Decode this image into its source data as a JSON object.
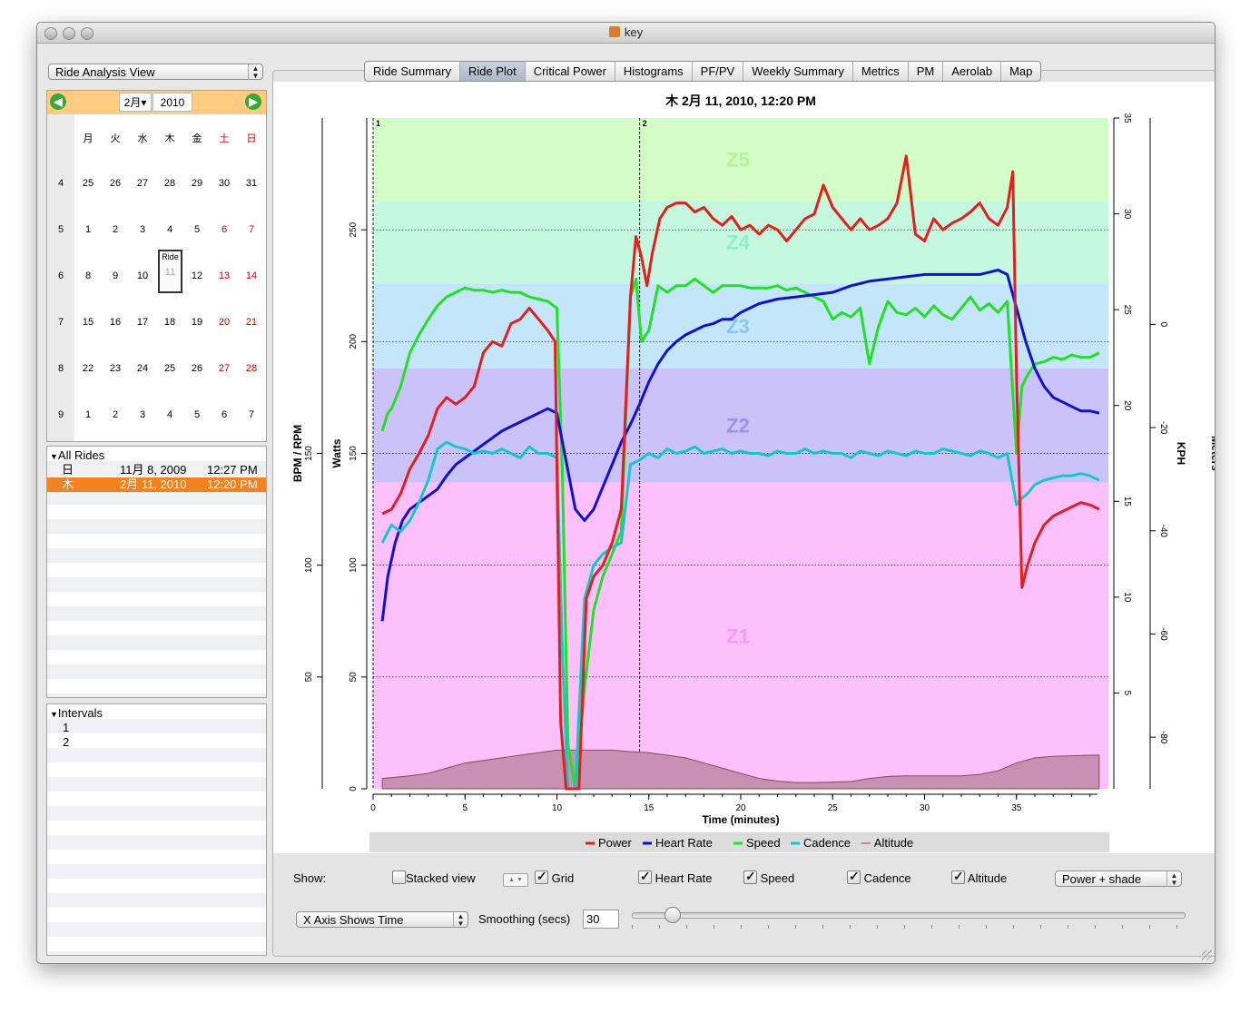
{
  "window": {
    "title": "key"
  },
  "sidebar": {
    "view_selector": "Ride Analysis View",
    "calendar": {
      "month": "2月",
      "year": "2010",
      "weekdays": [
        "月",
        "火",
        "水",
        "木",
        "金",
        "土",
        "日"
      ],
      "weeks": [
        {
          "num": "4",
          "days": [
            "25",
            "26",
            "27",
            "28",
            "29",
            "30",
            "31"
          ]
        },
        {
          "num": "5",
          "days": [
            "1",
            "2",
            "3",
            "4",
            "5",
            "6",
            "7"
          ]
        },
        {
          "num": "6",
          "days": [
            "8",
            "9",
            "10",
            "11",
            "12",
            "13",
            "14"
          ]
        },
        {
          "num": "7",
          "days": [
            "15",
            "16",
            "17",
            "18",
            "19",
            "20",
            "21"
          ]
        },
        {
          "num": "8",
          "days": [
            "22",
            "23",
            "24",
            "25",
            "26",
            "27",
            "28"
          ]
        },
        {
          "num": "9",
          "days": [
            "1",
            "2",
            "3",
            "4",
            "5",
            "6",
            "7"
          ]
        }
      ],
      "ride_marker": "Ride",
      "weekend_color": "#cc0000",
      "header_color": "#ffcc80"
    },
    "rides": {
      "header": "All Rides",
      "items": [
        {
          "day": "日",
          "date": "11月 8, 2009",
          "time": "12:27 PM",
          "selected": false
        },
        {
          "day": "木",
          "date": "2月 11, 2010",
          "time": "12:20 PM",
          "selected": true
        }
      ],
      "selected_color": "#f4831f"
    },
    "intervals": {
      "header": "Intervals",
      "items": [
        "1",
        "2"
      ]
    }
  },
  "tabs": [
    {
      "label": "Ride Summary"
    },
    {
      "label": "Ride Plot",
      "selected": true
    },
    {
      "label": "Critical Power"
    },
    {
      "label": "Histograms"
    },
    {
      "label": "PF/PV"
    },
    {
      "label": "Weekly Summary"
    },
    {
      "label": "Metrics"
    },
    {
      "label": "PM"
    },
    {
      "label": "Aerolab"
    },
    {
      "label": "Map"
    }
  ],
  "controls": {
    "show_label": "Show:",
    "stacked_view": {
      "label": "Stacked view",
      "checked": false
    },
    "grid": {
      "label": "Grid",
      "checked": true
    },
    "heart_rate": {
      "label": "Heart Rate",
      "checked": true
    },
    "speed": {
      "label": "Speed",
      "checked": true
    },
    "cadence": {
      "label": "Cadence",
      "checked": true
    },
    "altitude": {
      "label": "Altitude",
      "checked": true
    },
    "shade_select": "Power + shade",
    "x_axis_select": "X Axis Shows Time",
    "smoothing_label": "Smoothing (secs)",
    "smoothing_value": "30",
    "smoothing_slider_fraction": 0.06
  },
  "chart_data": {
    "type": "line",
    "title": "木 2月 11, 2010, 12:20 PM",
    "xlabel": "Time (minutes)",
    "xlim": [
      0,
      40
    ],
    "xticks": [
      "0",
      "5",
      "10",
      "15",
      "20",
      "25",
      "30",
      "35"
    ],
    "y_axes": {
      "watts": {
        "label": "Watts",
        "range": [
          0,
          300
        ],
        "ticks": [
          "0",
          "50",
          "100",
          "150",
          "200",
          "250"
        ]
      },
      "bpm_rpm": {
        "label": "BPM / RPM",
        "range": [
          0,
          300
        ],
        "ticks": [
          "50",
          "100",
          "150"
        ]
      },
      "kph": {
        "label": "KPH",
        "range": [
          0,
          35
        ],
        "ticks": [
          "5",
          "10",
          "15",
          "20",
          "25",
          "30",
          "35"
        ]
      },
      "meters": {
        "label": "Meters",
        "range": [
          -90,
          40
        ],
        "ticks": [
          "-80",
          "-60",
          "-40",
          "-20",
          "0"
        ]
      }
    },
    "zones": [
      {
        "name": "Z1",
        "from": 0,
        "to": 137,
        "color": "#fcc0fc"
      },
      {
        "name": "Z2",
        "from": 137,
        "to": 188,
        "color": "#cbc2fa"
      },
      {
        "name": "Z3",
        "from": 188,
        "to": 226,
        "color": "#c4e6fa"
      },
      {
        "name": "Z4",
        "from": 226,
        "to": 263,
        "color": "#c4f9df"
      },
      {
        "name": "Z5",
        "from": 263,
        "to": 300,
        "color": "#d4fcc6"
      }
    ],
    "intervals": [
      {
        "name": "1",
        "x": 0
      },
      {
        "name": "2",
        "x": 14.5
      }
    ],
    "grid": true,
    "legend_position": "bottom",
    "series": [
      {
        "name": "Power",
        "color": "#e21f1f",
        "axis": "watts",
        "x": [
          0.5,
          1,
          1.5,
          2,
          2.5,
          3,
          3.5,
          4,
          4.5,
          5,
          5.5,
          6,
          6.5,
          7,
          7.5,
          8,
          8.5,
          9,
          9.5,
          9.9,
          10.2,
          10.5,
          10.8,
          11.2,
          11.6,
          12,
          12.5,
          13,
          13.5,
          14,
          14.3,
          14.6,
          14.9,
          15.2,
          15.6,
          16,
          16.5,
          17,
          17.5,
          18,
          18.5,
          19,
          19.5,
          20,
          20.5,
          21,
          21.5,
          22,
          22.5,
          23,
          23.5,
          24,
          24.5,
          25,
          25.5,
          26,
          26.5,
          27,
          27.5,
          28,
          28.5,
          29,
          29.5,
          30,
          30.5,
          31,
          31.5,
          32,
          32.5,
          33,
          33.5,
          34,
          34.5,
          34.8,
          35,
          35.3,
          35.6,
          36,
          36.5,
          37,
          37.5,
          38,
          38.5,
          39,
          39.5
        ],
        "y": [
          123,
          125,
          132,
          143,
          150,
          158,
          170,
          175,
          172,
          175,
          180,
          195,
          200,
          198,
          208,
          210,
          215,
          210,
          205,
          200,
          30,
          0,
          0,
          0,
          85,
          95,
          100,
          110,
          125,
          220,
          247,
          238,
          225,
          240,
          255,
          260,
          262,
          262,
          258,
          260,
          255,
          252,
          256,
          250,
          252,
          248,
          252,
          250,
          245,
          250,
          255,
          257,
          270,
          260,
          255,
          250,
          255,
          250,
          252,
          255,
          262,
          283,
          248,
          245,
          255,
          250,
          253,
          255,
          258,
          262,
          255,
          252,
          260,
          276,
          185,
          90,
          100,
          110,
          118,
          122,
          124,
          126,
          128,
          127,
          125
        ]
      },
      {
        "name": "Heart Rate",
        "color": "#1010d4",
        "axis": "bpm_rpm",
        "x": [
          0.5,
          0.8,
          1.2,
          1.6,
          2,
          2.5,
          3,
          3.5,
          4,
          4.5,
          5,
          5.5,
          6,
          6.5,
          7,
          7.5,
          8,
          8.5,
          9,
          9.5,
          10,
          10.3,
          10.7,
          11,
          11.5,
          12,
          12.5,
          13,
          13.5,
          14,
          14.5,
          15,
          15.5,
          16,
          16.5,
          17,
          17.5,
          18,
          18.5,
          19,
          19.5,
          20,
          20.5,
          21,
          22,
          23,
          24,
          25,
          26,
          27,
          28,
          29,
          30,
          31,
          32,
          33,
          34,
          34.5,
          35,
          35.5,
          36,
          36.5,
          37,
          37.5,
          38,
          38.5,
          39,
          39.5
        ],
        "y": [
          75,
          95,
          110,
          120,
          125,
          128,
          131,
          134,
          140,
          145,
          148,
          151,
          154,
          157,
          160,
          162,
          164,
          166,
          168,
          170,
          168,
          155,
          138,
          125,
          120,
          125,
          135,
          145,
          155,
          163,
          172,
          182,
          190,
          196,
          200,
          203,
          205,
          207,
          208,
          210,
          210,
          213,
          215,
          217,
          219,
          220,
          221,
          222,
          225,
          227,
          228,
          229,
          230,
          230,
          230,
          230,
          232,
          230,
          215,
          200,
          188,
          180,
          175,
          173,
          171,
          169,
          169,
          168
        ]
      },
      {
        "name": "Speed",
        "color": "#22e022",
        "axis": "bpm_rpm",
        "x": [
          0.5,
          0.8,
          1,
          1.5,
          2,
          2.5,
          3,
          3.5,
          4,
          4.5,
          5,
          5.5,
          6,
          6.5,
          7,
          7.5,
          8,
          8.5,
          9,
          9.5,
          10,
          10.3,
          10.6,
          11,
          11.5,
          12,
          12.5,
          13,
          13.5,
          14,
          14.3,
          14.6,
          15,
          15.5,
          16,
          16.5,
          17,
          17.5,
          18,
          18.5,
          19,
          19.5,
          20,
          20.5,
          21,
          21.5,
          22,
          22.5,
          23,
          23.5,
          24,
          24.5,
          25,
          25.5,
          26,
          26.5,
          27,
          27.5,
          28,
          28.5,
          29,
          29.5,
          30,
          30.5,
          31,
          31.5,
          32,
          32.5,
          33,
          33.5,
          34,
          34.5,
          35,
          35.3,
          35.6,
          36,
          36.5,
          37,
          37.5,
          38,
          38.5,
          39,
          39.5
        ],
        "y": [
          160,
          168,
          170,
          180,
          195,
          203,
          210,
          216,
          220,
          222,
          224,
          223,
          223,
          222,
          223,
          222,
          222,
          220,
          219,
          218,
          215,
          140,
          20,
          0,
          45,
          80,
          95,
          105,
          115,
          220,
          228,
          200,
          205,
          225,
          222,
          225,
          225,
          228,
          225,
          222,
          225,
          225,
          225,
          224,
          224,
          224,
          225,
          223,
          224,
          222,
          220,
          218,
          210,
          213,
          211,
          215,
          190,
          207,
          218,
          213,
          212,
          215,
          211,
          216,
          212,
          210,
          215,
          220,
          214,
          217,
          213,
          218,
          150,
          180,
          185,
          190,
          191,
          193,
          192,
          194,
          193,
          193,
          195
        ]
      },
      {
        "name": "Cadence",
        "color": "#12c8c8",
        "axis": "bpm_rpm",
        "x": [
          0.5,
          1,
          1.5,
          2,
          2.5,
          3,
          3.5,
          4,
          4.5,
          5,
          5.5,
          6,
          6.5,
          7,
          7.5,
          8,
          8.5,
          9,
          9.5,
          10,
          10.3,
          10.6,
          11,
          11.5,
          12,
          12.5,
          13,
          13.5,
          14,
          14.5,
          15,
          15.5,
          16,
          16.5,
          17,
          17.5,
          18,
          18.5,
          19,
          19.5,
          20,
          20.5,
          21,
          21.5,
          22,
          22.5,
          23,
          23.5,
          24,
          24.5,
          25,
          25.5,
          26,
          26.5,
          27,
          27.5,
          28,
          28.5,
          29,
          29.5,
          30,
          30.5,
          31,
          31.5,
          32,
          32.5,
          33,
          33.5,
          34,
          34.5,
          35,
          35.3,
          35.6,
          36,
          36.5,
          37,
          37.5,
          38,
          38.5,
          39,
          39.5
        ],
        "y": [
          110,
          118,
          115,
          120,
          128,
          138,
          152,
          155,
          153,
          152,
          150,
          151,
          150,
          152,
          150,
          148,
          153,
          150,
          150,
          148,
          60,
          0,
          0,
          85,
          100,
          105,
          108,
          110,
          145,
          147,
          150,
          148,
          152,
          150,
          151,
          153,
          150,
          151,
          152,
          150,
          151,
          150,
          150,
          149,
          151,
          150,
          150,
          152,
          150,
          151,
          150,
          150,
          148,
          151,
          150,
          149,
          151,
          150,
          149,
          151,
          150,
          150,
          152,
          151,
          150,
          149,
          151,
          150,
          148,
          150,
          127,
          130,
          132,
          136,
          138,
          139,
          140,
          140,
          141,
          140,
          138
        ]
      },
      {
        "name": "Altitude",
        "color": "#8a4a5a",
        "axis": "meters",
        "x": [
          0.5,
          2,
          3,
          4,
          5,
          6,
          7,
          8,
          9,
          10,
          11,
          12,
          13,
          14,
          15,
          16,
          17,
          18,
          19,
          20,
          21,
          22,
          23,
          24,
          25,
          26,
          27,
          28,
          29,
          30,
          31,
          32,
          33,
          34,
          35,
          36,
          37,
          38,
          39,
          39.5
        ],
        "y": [
          -88,
          -87.5,
          -87,
          -86,
          -85,
          -84.5,
          -84,
          -83.5,
          -83,
          -82.5,
          -82.5,
          -82.5,
          -82.5,
          -82.8,
          -83,
          -83.5,
          -84,
          -85,
          -86,
          -87,
          -88,
          -88.5,
          -88.8,
          -88.8,
          -88.7,
          -88.6,
          -88,
          -87.6,
          -87.5,
          -87.5,
          -87.5,
          -87.5,
          -87.2,
          -86.5,
          -85,
          -84,
          -83.7,
          -83.6,
          -83.5,
          -83.5
        ]
      }
    ]
  }
}
